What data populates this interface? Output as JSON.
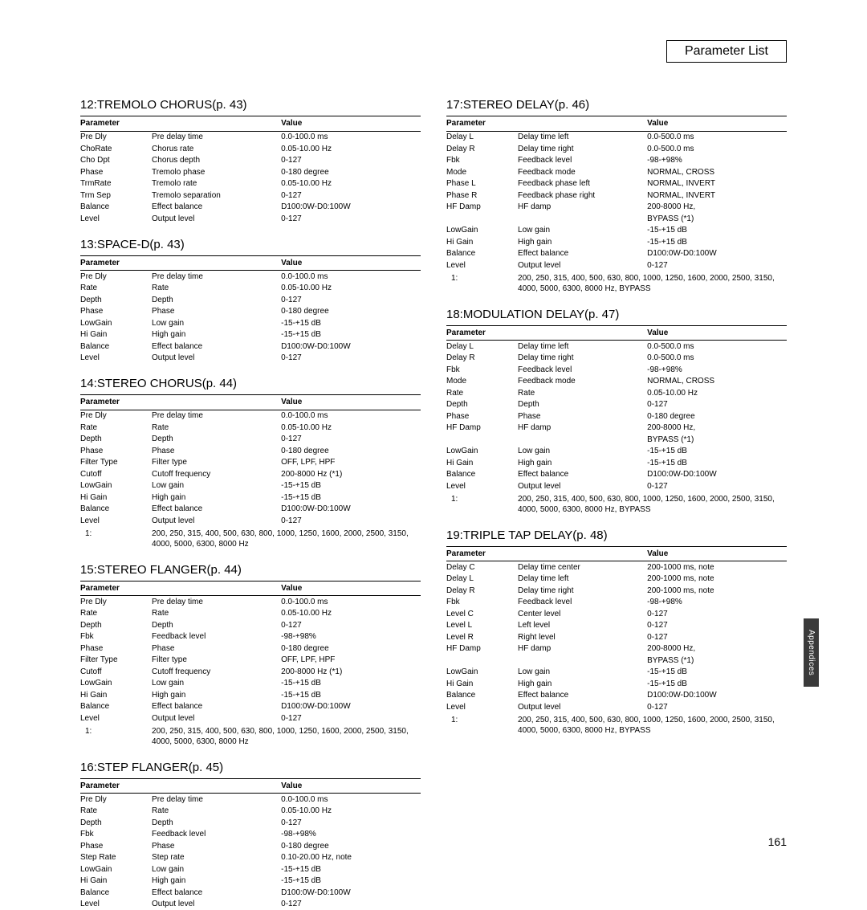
{
  "page_title": "Parameter List",
  "side_tab": "Appendices",
  "page_number": "161",
  "col_headers": {
    "param": "Parameter",
    "value": "Value"
  },
  "sections_left": [
    {
      "title": "12:TREMOLO CHORUS(p. 43)",
      "rows": [
        [
          "Pre Dly",
          "Pre delay time",
          "0.0-100.0 ms"
        ],
        [
          "ChoRate",
          "Chorus rate",
          "0.05-10.00 Hz"
        ],
        [
          "Cho Dpt",
          "Chorus depth",
          "0-127"
        ],
        [
          "Phase",
          "Tremolo phase",
          "0-180 degree"
        ],
        [
          "TrmRate",
          "Tremolo rate",
          "0.05-10.00 Hz"
        ],
        [
          "Trm Sep",
          "Tremolo separation",
          "0-127"
        ],
        [
          "Balance",
          "Effect balance",
          "D100:0W-D0:100W"
        ],
        [
          "Level",
          "Output level",
          "0-127"
        ]
      ]
    },
    {
      "title": "13:SPACE-D(p. 43)",
      "rows": [
        [
          "Pre Dly",
          "Pre delay time",
          "0.0-100.0 ms"
        ],
        [
          "Rate",
          "Rate",
          "0.05-10.00 Hz"
        ],
        [
          "Depth",
          "Depth",
          "0-127"
        ],
        [
          "Phase",
          "Phase",
          "0-180 degree"
        ],
        [
          "LowGain",
          "Low gain",
          "-15-+15 dB"
        ],
        [
          "Hi Gain",
          "High gain",
          "-15-+15 dB"
        ],
        [
          "Balance",
          "Effect balance",
          "D100:0W-D0:100W"
        ],
        [
          "Level",
          "Output level",
          "0-127"
        ]
      ]
    },
    {
      "title": "14:STEREO CHORUS(p. 44)",
      "rows": [
        [
          "Pre Dly",
          "Pre delay time",
          "0.0-100.0 ms"
        ],
        [
          "Rate",
          "Rate",
          "0.05-10.00 Hz"
        ],
        [
          "Depth",
          "Depth",
          "0-127"
        ],
        [
          "Phase",
          "Phase",
          "0-180 degree"
        ],
        [
          "Filter Type",
          "Filter type",
          "OFF, LPF, HPF"
        ],
        [
          "Cutoff",
          "Cutoff frequency",
          "200-8000 Hz (*1)"
        ],
        [
          "LowGain",
          "Low gain",
          "-15-+15 dB"
        ],
        [
          "Hi Gain",
          "High gain",
          "-15-+15 dB"
        ],
        [
          "Balance",
          "Effect balance",
          "D100:0W-D0:100W"
        ],
        [
          "Level",
          "Output level",
          "0-127"
        ]
      ],
      "footnote": {
        "idx": "1:",
        "text": "200, 250, 315, 400, 500, 630, 800, 1000, 1250, 1600, 2000, 2500, 3150, 4000, 5000, 6300, 8000 Hz"
      }
    },
    {
      "title": "15:STEREO FLANGER(p. 44)",
      "rows": [
        [
          "Pre Dly",
          "Pre delay time",
          "0.0-100.0 ms"
        ],
        [
          "Rate",
          "Rate",
          "0.05-10.00 Hz"
        ],
        [
          "Depth",
          "Depth",
          "0-127"
        ],
        [
          "Fbk",
          "Feedback level",
          "-98-+98%"
        ],
        [
          "Phase",
          "Phase",
          "0-180 degree"
        ],
        [
          "Filter Type",
          "Filter type",
          "OFF, LPF, HPF"
        ],
        [
          "Cutoff",
          "Cutoff frequency",
          "200-8000 Hz (*1)"
        ],
        [
          "LowGain",
          "Low gain",
          "-15-+15 dB"
        ],
        [
          "Hi Gain",
          "High gain",
          "-15-+15 dB"
        ],
        [
          "Balance",
          "Effect balance",
          "D100:0W-D0:100W"
        ],
        [
          "Level",
          "Output level",
          "0-127"
        ]
      ],
      "footnote": {
        "idx": "1:",
        "text": "200, 250, 315, 400, 500, 630, 800, 1000, 1250, 1600, 2000, 2500, 3150, 4000, 5000, 6300, 8000 Hz"
      }
    },
    {
      "title": "16:STEP FLANGER(p. 45)",
      "rows": [
        [
          "Pre Dly",
          "Pre delay time",
          "0.0-100.0 ms"
        ],
        [
          "Rate",
          "Rate",
          "0.05-10.00 Hz"
        ],
        [
          "Depth",
          "Depth",
          "0-127"
        ],
        [
          "Fbk",
          "Feedback level",
          "-98-+98%"
        ],
        [
          "Phase",
          "Phase",
          "0-180 degree"
        ],
        [
          "Step Rate",
          "Step rate",
          "0.10-20.00 Hz, note"
        ],
        [
          "LowGain",
          "Low gain",
          "-15-+15 dB"
        ],
        [
          "Hi Gain",
          "High gain",
          "-15-+15 dB"
        ],
        [
          "Balance",
          "Effect balance",
          "D100:0W-D0:100W"
        ],
        [
          "Level",
          "Output level",
          "0-127"
        ]
      ]
    }
  ],
  "sections_right": [
    {
      "title": "17:STEREO DELAY(p. 46)",
      "rows": [
        [
          "Delay L",
          "Delay time left",
          "0.0-500.0 ms"
        ],
        [
          "Delay R",
          "Delay time right",
          "0.0-500.0 ms"
        ],
        [
          "Fbk",
          "Feedback level",
          "-98-+98%"
        ],
        [
          "Mode",
          "Feedback mode",
          "NORMAL, CROSS"
        ],
        [
          "Phase L",
          "Feedback phase left",
          "NORMAL, INVERT"
        ],
        [
          "Phase R",
          "Feedback phase right",
          "NORMAL, INVERT"
        ],
        [
          "HF Damp",
          "HF damp",
          "200-8000 Hz,"
        ],
        [
          "",
          "",
          "BYPASS (*1)"
        ],
        [
          "LowGain",
          "Low gain",
          "-15-+15 dB"
        ],
        [
          "Hi Gain",
          "High gain",
          "-15-+15 dB"
        ],
        [
          "Balance",
          "Effect balance",
          "D100:0W-D0:100W"
        ],
        [
          "Level",
          "Output level",
          "0-127"
        ]
      ],
      "footnote": {
        "idx": "1:",
        "text": "200, 250, 315, 400, 500, 630, 800, 1000, 1250, 1600, 2000, 2500, 3150, 4000, 5000, 6300, 8000 Hz, BYPASS"
      }
    },
    {
      "title": "18:MODULATION DELAY(p. 47)",
      "rows": [
        [
          "Delay L",
          "Delay time left",
          "0.0-500.0 ms"
        ],
        [
          "Delay R",
          "Delay time right",
          "0.0-500.0 ms"
        ],
        [
          "Fbk",
          "Feedback level",
          "-98-+98%"
        ],
        [
          "Mode",
          "Feedback mode",
          "NORMAL, CROSS"
        ],
        [
          "Rate",
          "Rate",
          "0.05-10.00 Hz"
        ],
        [
          "Depth",
          "Depth",
          "0-127"
        ],
        [
          "Phase",
          "Phase",
          "0-180 degree"
        ],
        [
          "HF Damp",
          "HF damp",
          "200-8000 Hz,"
        ],
        [
          "",
          "",
          "BYPASS (*1)"
        ],
        [
          "LowGain",
          "Low gain",
          "-15-+15 dB"
        ],
        [
          "Hi Gain",
          "High gain",
          "-15-+15 dB"
        ],
        [
          "Balance",
          "Effect balance",
          "D100:0W-D0:100W"
        ],
        [
          "Level",
          "Output level",
          "0-127"
        ]
      ],
      "footnote": {
        "idx": "1:",
        "text": "200, 250, 315, 400, 500, 630, 800, 1000, 1250, 1600, 2000, 2500, 3150, 4000, 5000, 6300, 8000 Hz, BYPASS"
      }
    },
    {
      "title": "19:TRIPLE TAP DELAY(p. 48)",
      "rows": [
        [
          "Delay C",
          "Delay time center",
          "200-1000 ms, note"
        ],
        [
          "Delay L",
          "Delay time left",
          "200-1000 ms, note"
        ],
        [
          "Delay R",
          "Delay time right",
          "200-1000 ms, note"
        ],
        [
          "Fbk",
          "Feedback level",
          "-98-+98%"
        ],
        [
          "Level C",
          "Center level",
          "0-127"
        ],
        [
          "Level L",
          "Left level",
          "0-127"
        ],
        [
          "Level R",
          "Right level",
          "0-127"
        ],
        [
          "HF Damp",
          "HF damp",
          "200-8000 Hz,"
        ],
        [
          "",
          "",
          "BYPASS (*1)"
        ],
        [
          "LowGain",
          "Low gain",
          "-15-+15 dB"
        ],
        [
          "Hi Gain",
          "High gain",
          "-15-+15 dB"
        ],
        [
          "Balance",
          "Effect balance",
          "D100:0W-D0:100W"
        ],
        [
          "Level",
          "Output level",
          "0-127"
        ]
      ],
      "footnote": {
        "idx": "1:",
        "text": "200, 250, 315, 400, 500, 630, 800, 1000, 1250, 1600, 2000, 2500, 3150, 4000, 5000, 6300, 8000 Hz, BYPASS"
      }
    }
  ]
}
